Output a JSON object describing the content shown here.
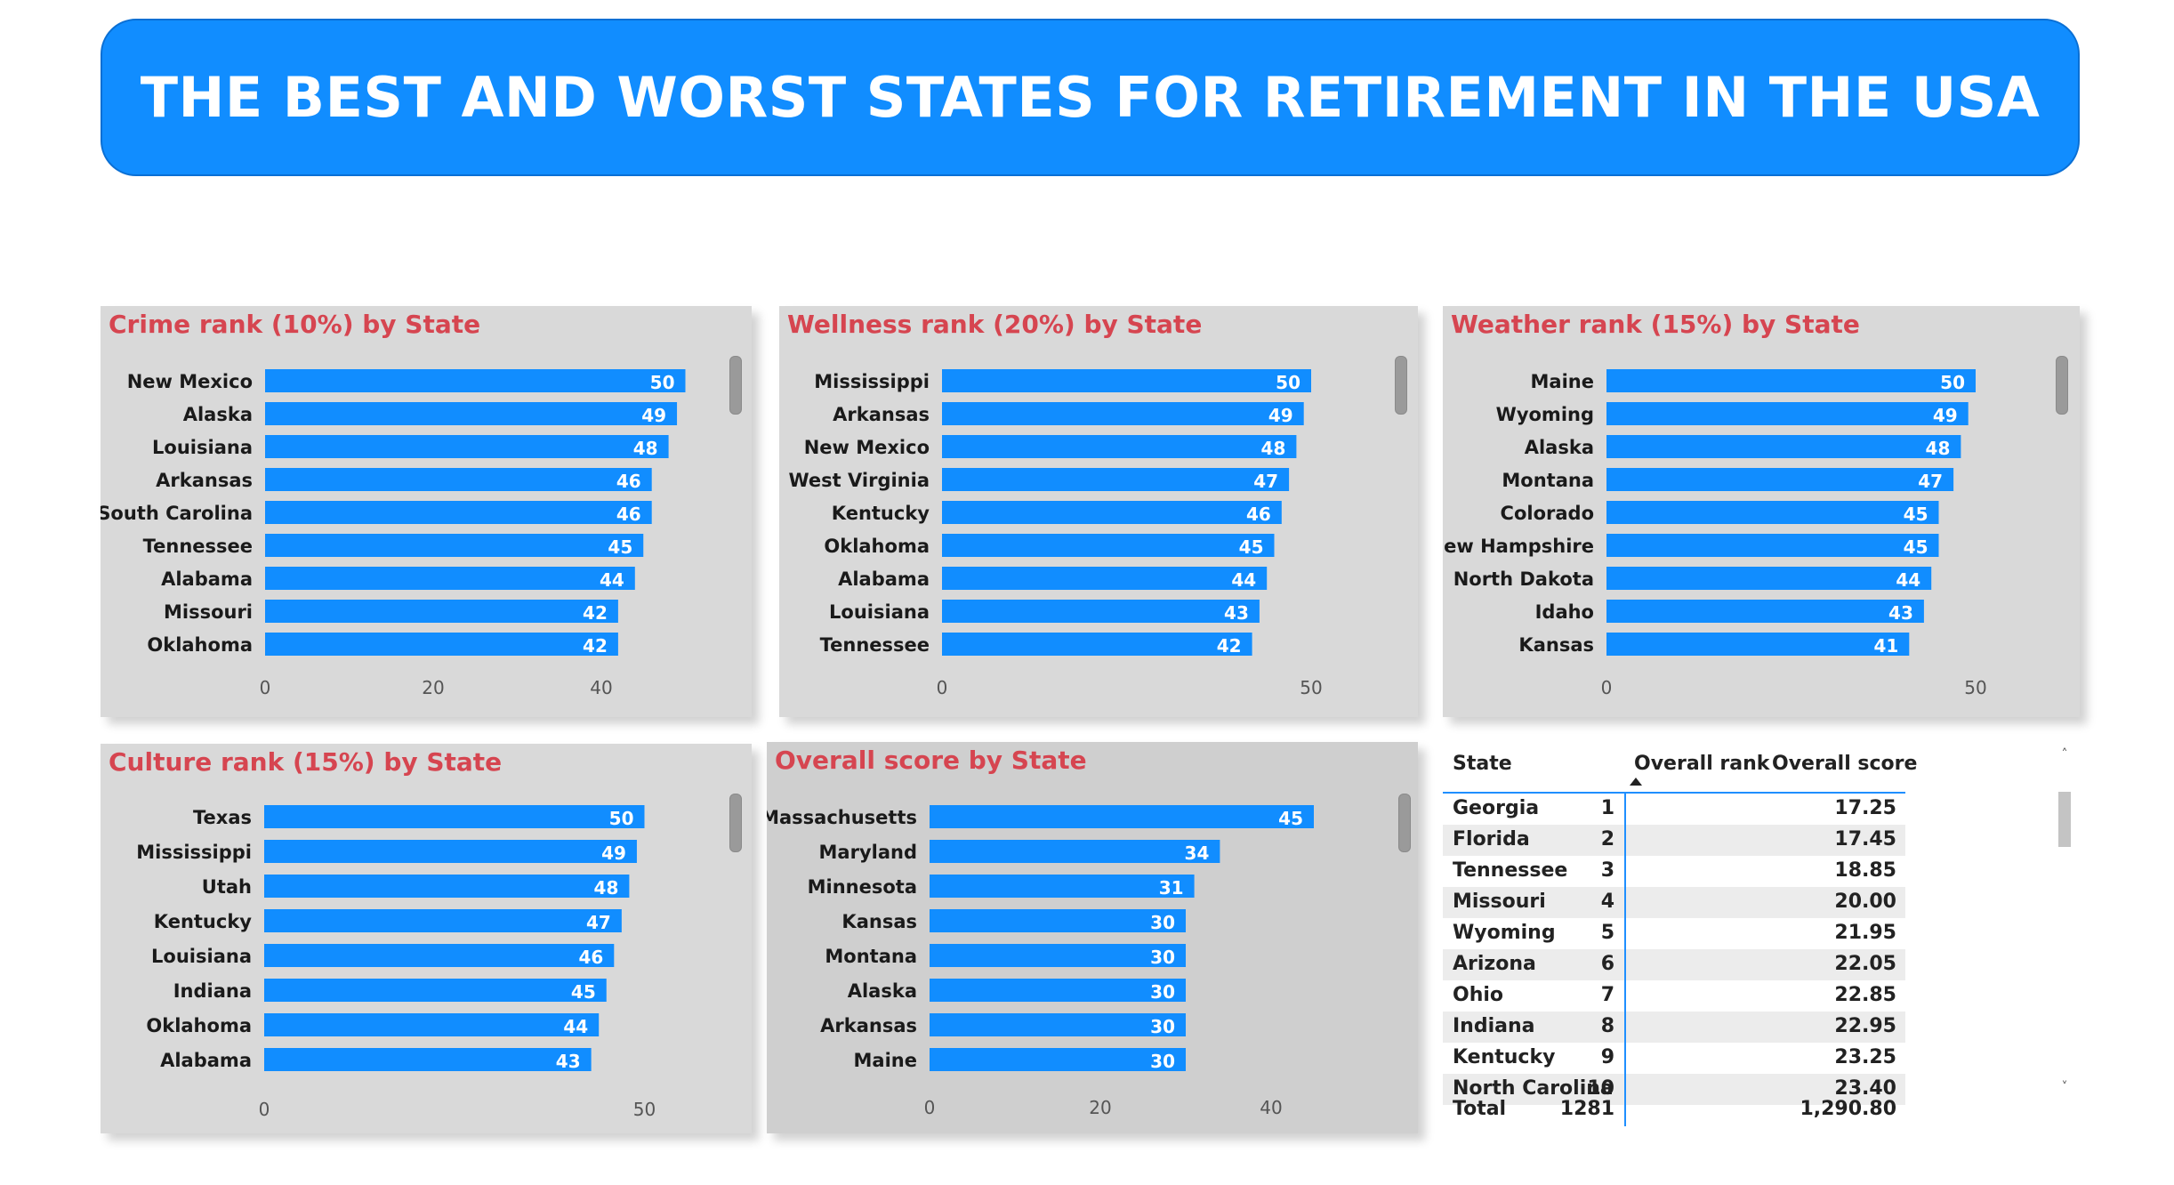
{
  "header": {
    "title": "THE BEST AND WORST STATES FOR RETIREMENT IN THE USA"
  },
  "colors": {
    "bar": "#118dff",
    "title": "#d64550",
    "card": "#d9d9d9",
    "banner": "#118dff"
  },
  "chart_data": [
    {
      "id": "crime",
      "type": "bar",
      "orientation": "horizontal",
      "title": "Crime rank (10%) by State",
      "categories": [
        "New Mexico",
        "Alaska",
        "Louisiana",
        "Arkansas",
        "South Carolina",
        "Tennessee",
        "Alabama",
        "Missouri",
        "Oklahoma"
      ],
      "values": [
        50,
        49,
        48,
        46,
        46,
        45,
        44,
        42,
        42
      ],
      "xlim": [
        0,
        50
      ],
      "ticks": [
        0,
        20,
        40
      ],
      "grid": false,
      "data_labels": true
    },
    {
      "id": "wellness",
      "type": "bar",
      "orientation": "horizontal",
      "title": "Wellness rank (20%) by State",
      "categories": [
        "Mississippi",
        "Arkansas",
        "New Mexico",
        "West Virginia",
        "Kentucky",
        "Oklahoma",
        "Alabama",
        "Louisiana",
        "Tennessee"
      ],
      "values": [
        50,
        49,
        48,
        47,
        46,
        45,
        44,
        43,
        42
      ],
      "xlim": [
        0,
        50
      ],
      "ticks": [
        0,
        50
      ],
      "grid": false,
      "data_labels": true
    },
    {
      "id": "weather",
      "type": "bar",
      "orientation": "horizontal",
      "title": "Weather rank (15%) by State",
      "categories": [
        "Maine",
        "Wyoming",
        "Alaska",
        "Montana",
        "Colorado",
        "New Hampshire",
        "North Dakota",
        "Idaho",
        "Kansas"
      ],
      "values": [
        50,
        49,
        48,
        47,
        45,
        45,
        44,
        43,
        41
      ],
      "xlim": [
        0,
        50
      ],
      "ticks": [
        0,
        50
      ],
      "grid": false,
      "data_labels": true
    },
    {
      "id": "culture",
      "type": "bar",
      "orientation": "horizontal",
      "title": "Culture rank (15%) by State",
      "categories": [
        "Texas",
        "Mississippi",
        "Utah",
        "Kentucky",
        "Louisiana",
        "Indiana",
        "Oklahoma",
        "Alabama"
      ],
      "values": [
        50,
        49,
        48,
        47,
        46,
        45,
        44,
        43
      ],
      "xlim": [
        0,
        50
      ],
      "ticks": [
        0,
        50
      ],
      "grid": false,
      "data_labels": true
    },
    {
      "id": "overall",
      "type": "bar",
      "orientation": "horizontal",
      "title": "Overall score by State",
      "categories": [
        "Massachusetts",
        "Maryland",
        "Minnesota",
        "Kansas",
        "Montana",
        "Alaska",
        "Arkansas",
        "Maine"
      ],
      "values": [
        45,
        34,
        31,
        30,
        30,
        30,
        30,
        30
      ],
      "xlim": [
        0,
        45
      ],
      "ticks": [
        0,
        20,
        40
      ],
      "grid": false,
      "data_labels": true
    },
    {
      "id": "overall-table",
      "type": "table",
      "columns": [
        "State",
        "Overall rank",
        "Overall score"
      ],
      "sorted_by": "Overall rank",
      "rows": [
        [
          "Georgia",
          "1",
          "17.25"
        ],
        [
          "Florida",
          "2",
          "17.45"
        ],
        [
          "Tennessee",
          "3",
          "18.85"
        ],
        [
          "Missouri",
          "4",
          "20.00"
        ],
        [
          "Wyoming",
          "5",
          "21.95"
        ],
        [
          "Arizona",
          "6",
          "22.05"
        ],
        [
          "Ohio",
          "7",
          "22.85"
        ],
        [
          "Indiana",
          "8",
          "22.95"
        ],
        [
          "Kentucky",
          "9",
          "23.25"
        ],
        [
          "North Carolina",
          "10",
          "23.40"
        ]
      ],
      "total": [
        "Total",
        "1281",
        "1,290.80"
      ]
    }
  ]
}
